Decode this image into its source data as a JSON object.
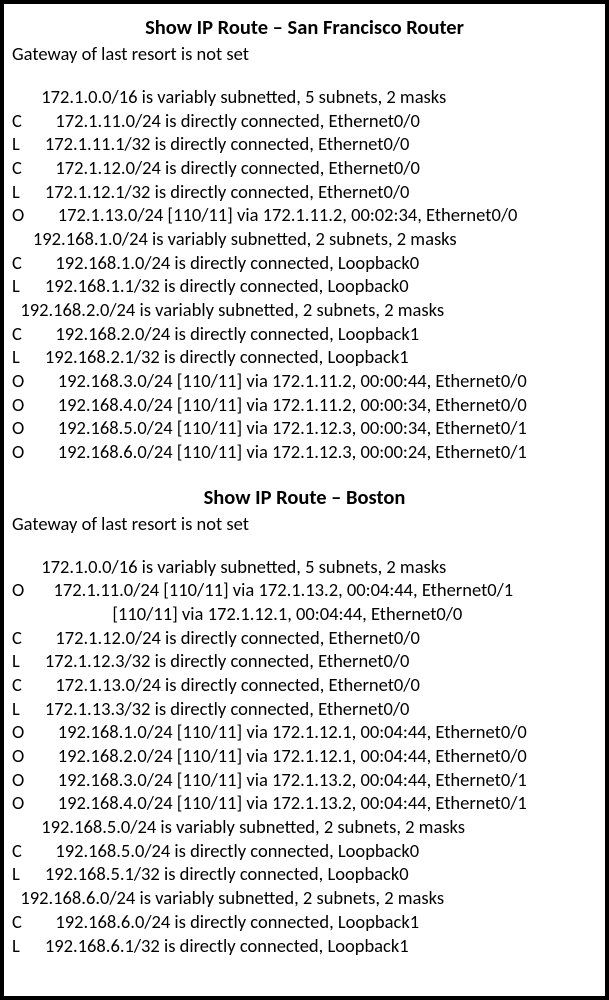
{
  "sections": [
    {
      "title": "Show IP Route – San Francisco Router",
      "gateway": "Gateway of last resort is not set",
      "lines": [
        "       172.1.0.0/16 is variably subnetted, 5 subnets, 2 masks",
        "C        172.1.11.0/24 is directly connected, Ethernet0/0",
        "L      172.1.11.1/32 is directly connected, Ethernet0/0",
        "C        172.1.12.0/24 is directly connected, Ethernet0/0",
        "L      172.1.12.1/32 is directly connected, Ethernet0/0",
        "O        172.1.13.0/24 [110/11] via 172.1.11.2, 00:02:34, Ethernet0/0",
        "     192.168.1.0/24 is variably subnetted, 2 subnets, 2 masks",
        "C        192.168.1.0/24 is directly connected, Loopback0",
        "L      192.168.1.1/32 is directly connected, Loopback0",
        "  192.168.2.0/24 is variably subnetted, 2 subnets, 2 masks",
        "C        192.168.2.0/24 is directly connected, Loopback1",
        "L      192.168.2.1/32 is directly connected, Loopback1",
        "O        192.168.3.0/24 [110/11] via 172.1.11.2, 00:00:44, Ethernet0/0",
        "O        192.168.4.0/24 [110/11] via 172.1.11.2, 00:00:34, Ethernet0/0",
        "O        192.168.5.0/24 [110/11] via 172.1.12.3, 00:00:34, Ethernet0/1",
        "O        192.168.6.0/24 [110/11] via 172.1.12.3, 00:00:24, Ethernet0/1"
      ]
    },
    {
      "title": "Show IP Route – Boston",
      "gateway": "Gateway of last resort is not set",
      "lines": [
        "       172.1.0.0/16 is variably subnetted, 5 subnets, 2 masks",
        "O       172.1.11.0/24 [110/11] via 172.1.13.2, 00:04:44, Ethernet0/1",
        "                        [110/11] via 172.1.12.1, 00:04:44, Ethernet0/0",
        "C        172.1.12.0/24 is directly connected, Ethernet0/0",
        "L      172.1.12.3/32 is directly connected, Ethernet0/0",
        "C        172.1.13.0/24 is directly connected, Ethernet0/0",
        "L      172.1.13.3/32 is directly connected, Ethernet0/0",
        "O        192.168.1.0/24 [110/11] via 172.1.12.1, 00:04:44, Ethernet0/0",
        "O        192.168.2.0/24 [110/11] via 172.1.12.1, 00:04:44, Ethernet0/0",
        "O        192.168.3.0/24 [110/11] via 172.1.13.2, 00:04:44, Ethernet0/1",
        "O        192.168.4.0/24 [110/11] via 172.1.13.2, 00:04:44, Ethernet0/1",
        "       192.168.5.0/24 is variably subnetted, 2 subnets, 2 masks",
        "C        192.168.5.0/24 is directly connected, Loopback0",
        "L      192.168.5.1/32 is directly connected, Loopback0",
        "  192.168.6.0/24 is variably subnetted, 2 subnets, 2 masks",
        "C        192.168.6.0/24 is directly connected, Loopback1",
        "L      192.168.6.1/32 is directly connected, Loopback1"
      ]
    }
  ]
}
